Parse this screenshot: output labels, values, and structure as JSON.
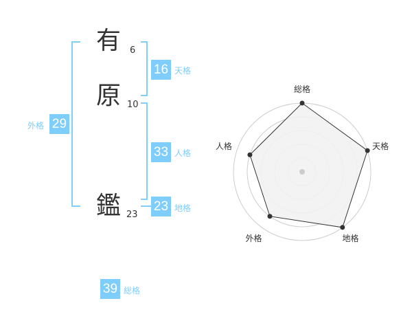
{
  "name": {
    "chars": [
      {
        "char": "有",
        "strokes": "6"
      },
      {
        "char": "原",
        "strokes": "10"
      },
      {
        "char": "鑑",
        "strokes": "23"
      }
    ]
  },
  "kaku": {
    "tenkaku": {
      "value": "16",
      "label": "天格"
    },
    "jinkaku": {
      "value": "33",
      "label": "人格"
    },
    "chikaku": {
      "value": "23",
      "label": "地格"
    },
    "gaikaku": {
      "value": "29",
      "label": "外格"
    },
    "soukaku": {
      "value": "39",
      "label": "総格"
    }
  },
  "colors": {
    "accent": "#7fcdfb",
    "polygon_fill": "#f2f2f2",
    "ring": "#cccccc",
    "point": "#333333"
  },
  "chart_data": {
    "type": "radar",
    "axes": [
      "総格",
      "天格",
      "地格",
      "外格",
      "人格"
    ],
    "values": [
      5,
      5,
      5,
      4,
      4
    ],
    "range": [
      0,
      5
    ],
    "rings": 5
  }
}
